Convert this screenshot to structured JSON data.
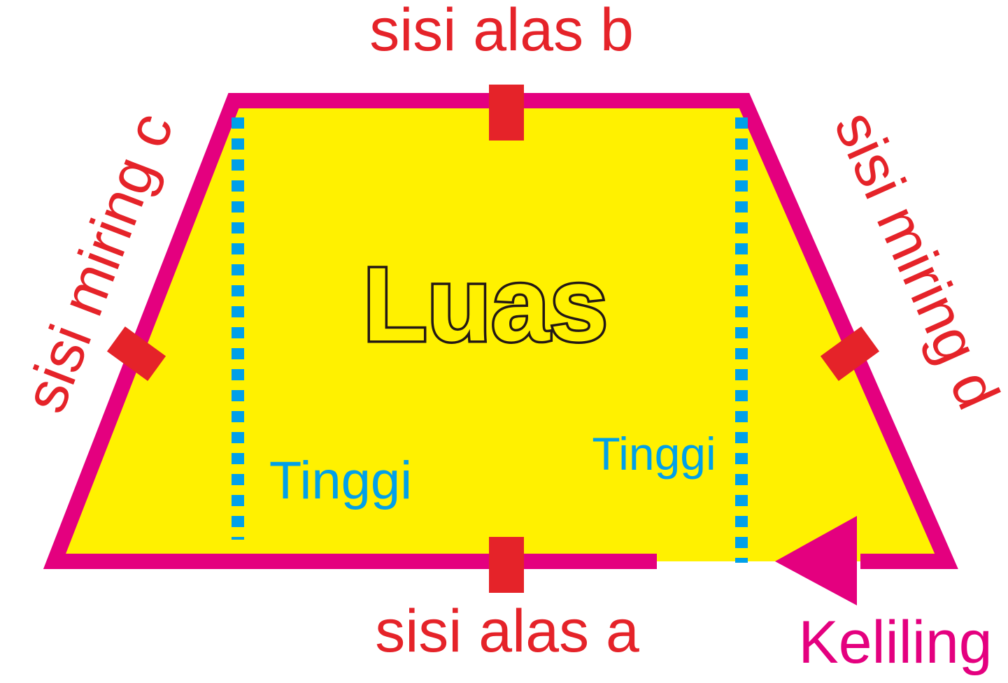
{
  "labels": {
    "top_base": "sisi alas b",
    "bottom_base": "sisi alas a",
    "left_slant": "sisi miring c",
    "right_slant": "sisi miring d",
    "area": "Luas",
    "height_left": "Tinggi",
    "height_right": "Tinggi",
    "perimeter": "Keliling"
  },
  "colors": {
    "fill": "#fff100",
    "outline": "#e4007f",
    "marker": "#e52329",
    "label": "#e52329",
    "height": "#00a0e9",
    "area_text": "#231815",
    "perimeter": "#e4007f"
  },
  "icons": {
    "direction_arrow": "arrow-left-icon"
  }
}
